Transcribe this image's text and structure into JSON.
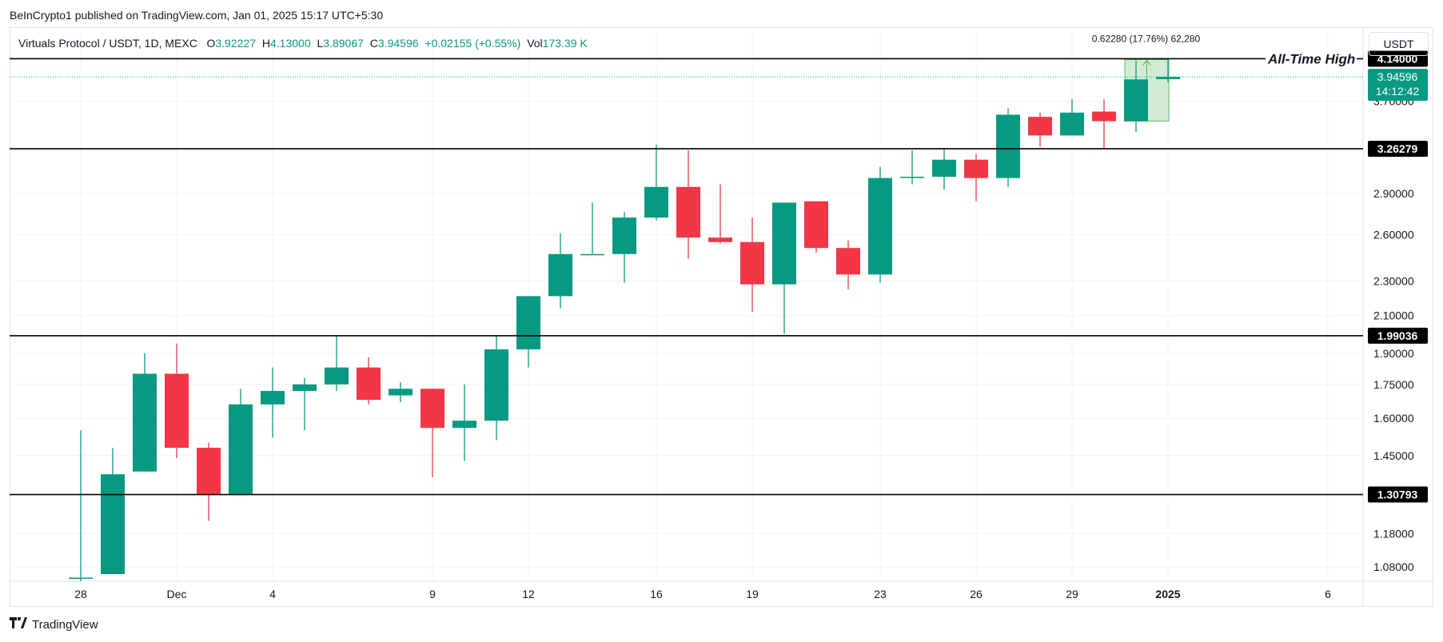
{
  "header": {
    "publisher": "BeInCrypto1 published on TradingView.com, Jan 01, 2025 15:17 UTC+5:30"
  },
  "legend": {
    "symbol": "Virtuals Protocol / USDT, 1D, MEXC",
    "o_label": "O",
    "o_value": "3.92227",
    "h_label": "H",
    "h_value": "4.13000",
    "l_label": "L",
    "l_value": "3.89067",
    "c_label": "C",
    "c_value": "3.94596",
    "change": "+0.02155 (+0.55%)",
    "vol_label": "Vol",
    "vol_value": "173.39 K"
  },
  "currency_button": "USDT",
  "footer": {
    "brand": "TradingView"
  },
  "colors": {
    "up": "#089981",
    "down": "#f23645",
    "level": "#000000",
    "grid": "#f0f3fa",
    "measure_fill": "#c8e6c9"
  },
  "chart_data": {
    "type": "candlestick",
    "scale": "log",
    "ylim": [
      1.04,
      4.5
    ],
    "y_ticks": [
      1.08,
      1.18,
      1.30793,
      1.45,
      1.6,
      1.75,
      1.9,
      1.99036,
      2.1,
      2.3,
      2.6,
      2.9,
      3.26279,
      3.7,
      4.14
    ],
    "y_tick_labels": [
      "1.08000",
      "1.18000",
      "1.30793",
      "1.45000",
      "1.60000",
      "1.75000",
      "1.90000",
      "1.99036",
      "2.10000",
      "2.30000",
      "2.60000",
      "2.90000",
      "3.26279",
      "3.70000",
      "4.14000"
    ],
    "x_ticks": [
      {
        "label": "28",
        "index": 0
      },
      {
        "label": "Dec",
        "index": 3
      },
      {
        "label": "4",
        "index": 6
      },
      {
        "label": "9",
        "index": 11
      },
      {
        "label": "12",
        "index": 14
      },
      {
        "label": "16",
        "index": 18
      },
      {
        "label": "19",
        "index": 21
      },
      {
        "label": "23",
        "index": 25
      },
      {
        "label": "26",
        "index": 28
      },
      {
        "label": "29",
        "index": 31
      },
      {
        "label": "2025",
        "index": 34
      },
      {
        "label": "6",
        "index": 39
      }
    ],
    "candles": [
      {
        "o": 1.05,
        "h": 1.55,
        "l": 1.04,
        "c": 1.05
      },
      {
        "o": 1.06,
        "h": 1.48,
        "l": 1.06,
        "c": 1.38
      },
      {
        "o": 1.39,
        "h": 1.9,
        "l": 1.39,
        "c": 1.8
      },
      {
        "o": 1.8,
        "h": 1.95,
        "l": 1.44,
        "c": 1.48
      },
      {
        "o": 1.48,
        "h": 1.5,
        "l": 1.22,
        "c": 1.31
      },
      {
        "o": 1.31,
        "h": 1.73,
        "l": 1.31,
        "c": 1.66
      },
      {
        "o": 1.66,
        "h": 1.83,
        "l": 1.52,
        "c": 1.72
      },
      {
        "o": 1.72,
        "h": 1.78,
        "l": 1.55,
        "c": 1.75
      },
      {
        "o": 1.75,
        "h": 1.99,
        "l": 1.72,
        "c": 1.83
      },
      {
        "o": 1.83,
        "h": 1.88,
        "l": 1.66,
        "c": 1.68
      },
      {
        "o": 1.7,
        "h": 1.76,
        "l": 1.67,
        "c": 1.73
      },
      {
        "o": 1.73,
        "h": 1.73,
        "l": 1.37,
        "c": 1.56
      },
      {
        "o": 1.56,
        "h": 1.75,
        "l": 1.43,
        "c": 1.59
      },
      {
        "o": 1.59,
        "h": 1.99,
        "l": 1.51,
        "c": 1.92
      },
      {
        "o": 1.92,
        "h": 2.21,
        "l": 1.83,
        "c": 2.21
      },
      {
        "o": 2.21,
        "h": 2.61,
        "l": 2.14,
        "c": 2.47
      },
      {
        "o": 2.47,
        "h": 2.83,
        "l": 2.47,
        "c": 2.47
      },
      {
        "o": 2.47,
        "h": 2.76,
        "l": 2.29,
        "c": 2.72
      },
      {
        "o": 2.72,
        "h": 3.3,
        "l": 2.7,
        "c": 2.95
      },
      {
        "o": 2.95,
        "h": 3.25,
        "l": 2.44,
        "c": 2.58
      },
      {
        "o": 2.58,
        "h": 2.97,
        "l": 2.54,
        "c": 2.55
      },
      {
        "o": 2.55,
        "h": 2.72,
        "l": 2.12,
        "c": 2.28
      },
      {
        "o": 2.28,
        "h": 2.83,
        "l": 2.0,
        "c": 2.83
      },
      {
        "o": 2.84,
        "h": 2.84,
        "l": 2.48,
        "c": 2.51
      },
      {
        "o": 2.51,
        "h": 2.56,
        "l": 2.25,
        "c": 2.34
      },
      {
        "o": 2.34,
        "h": 3.11,
        "l": 2.29,
        "c": 3.02
      },
      {
        "o": 3.02,
        "h": 3.25,
        "l": 2.97,
        "c": 3.03
      },
      {
        "o": 3.03,
        "h": 3.27,
        "l": 2.93,
        "c": 3.17
      },
      {
        "o": 3.17,
        "h": 3.22,
        "l": 2.84,
        "c": 3.02
      },
      {
        "o": 3.02,
        "h": 3.63,
        "l": 2.95,
        "c": 3.57
      },
      {
        "o": 3.55,
        "h": 3.59,
        "l": 3.28,
        "c": 3.38
      },
      {
        "o": 3.38,
        "h": 3.72,
        "l": 3.38,
        "c": 3.59
      },
      {
        "o": 3.6,
        "h": 3.72,
        "l": 3.27,
        "c": 3.51
      },
      {
        "o": 3.51,
        "h": 4.12,
        "l": 3.41,
        "c": 3.92
      },
      {
        "o": 3.92227,
        "h": 4.13,
        "l": 3.89067,
        "c": 3.94596
      }
    ],
    "levels": [
      {
        "value": 4.14,
        "label": "4.14000",
        "note": "All-Time High"
      },
      {
        "value": 3.26279,
        "label": "3.26279"
      },
      {
        "value": 1.99036,
        "label": "1.99036"
      },
      {
        "value": 1.30793,
        "label": "1.30793"
      }
    ],
    "last_price": {
      "value": 3.94596,
      "label": "3.94596",
      "countdown": "14:12:42"
    },
    "measure": {
      "from_index": 33,
      "to_index": 34,
      "from": 3.51,
      "to": 4.13,
      "label": "0.62280 (17.76%) 62,280"
    }
  }
}
